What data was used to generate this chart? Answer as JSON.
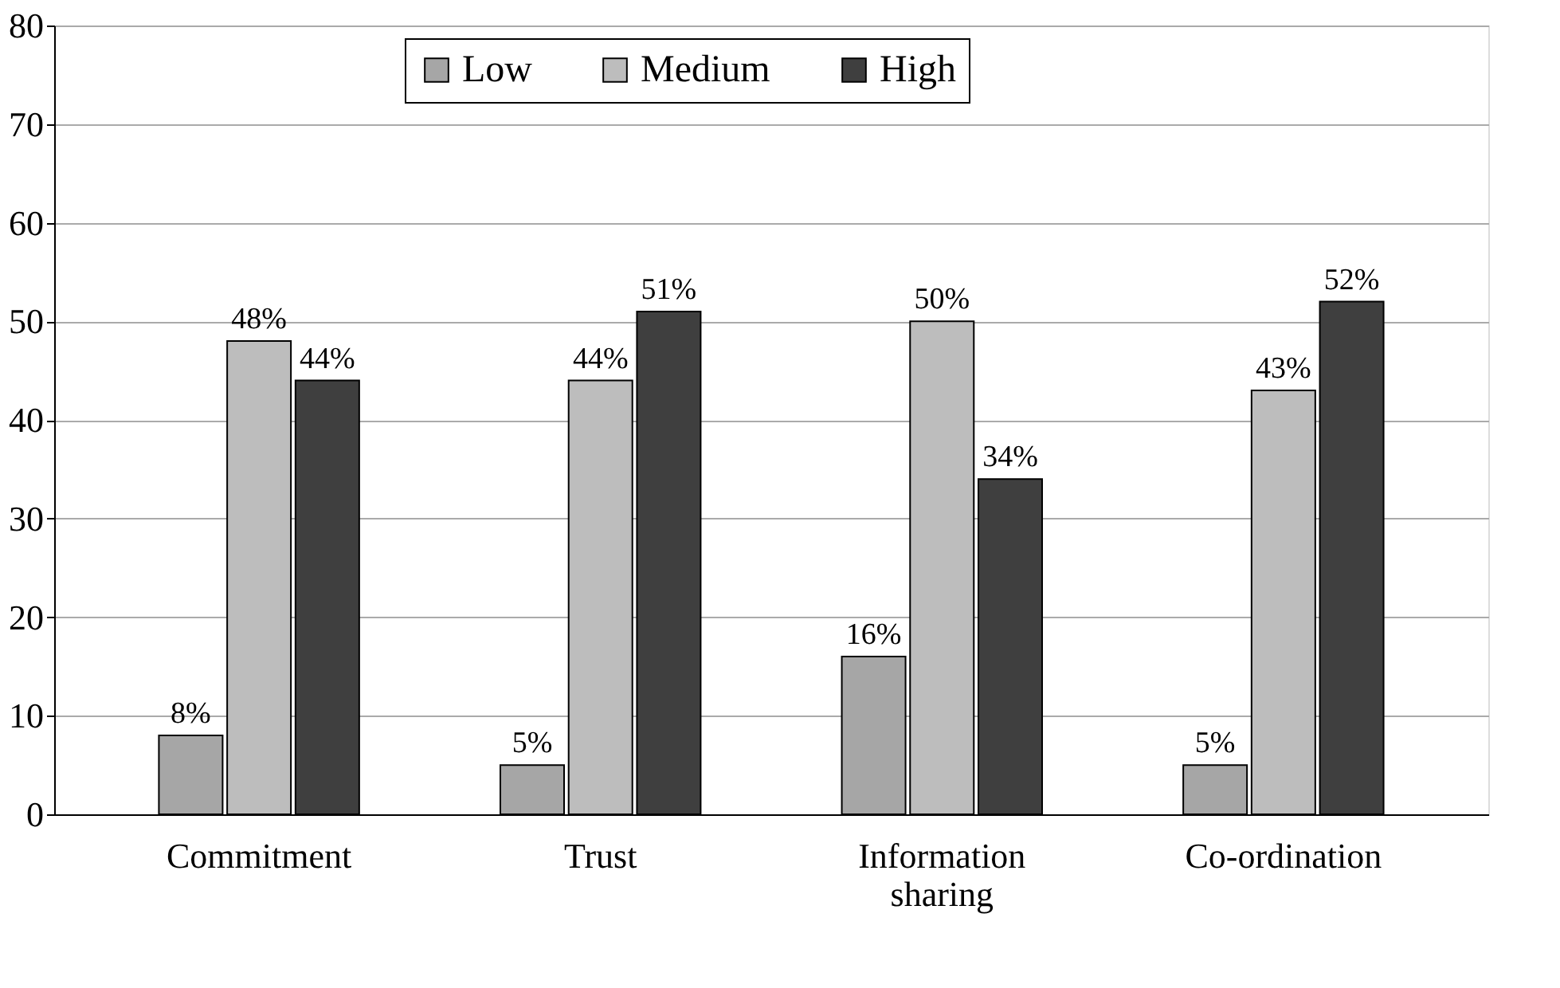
{
  "chart_data": {
    "type": "bar",
    "categories": [
      "Commitment",
      "Trust",
      "Information sharing",
      "Co-ordination"
    ],
    "series": [
      {
        "name": "Low",
        "color": "#a6a6a6",
        "values": [
          8,
          5,
          16,
          5
        ],
        "value_labels": [
          "8%",
          "5%",
          "16%",
          "5%"
        ]
      },
      {
        "name": "Medium",
        "color": "#bdbdbd",
        "values": [
          48,
          44,
          50,
          43
        ],
        "value_labels": [
          "48%",
          "44%",
          "50%",
          "43%"
        ]
      },
      {
        "name": "High",
        "color": "#3f3f3f",
        "values": [
          44,
          51,
          34,
          52
        ],
        "value_labels": [
          "44%",
          "51%",
          "34%",
          "52%"
        ]
      }
    ],
    "ylim": [
      0,
      80
    ],
    "yticks": [
      0,
      10,
      20,
      30,
      40,
      50,
      60,
      70,
      80
    ],
    "grid": "y",
    "legend": "top"
  }
}
